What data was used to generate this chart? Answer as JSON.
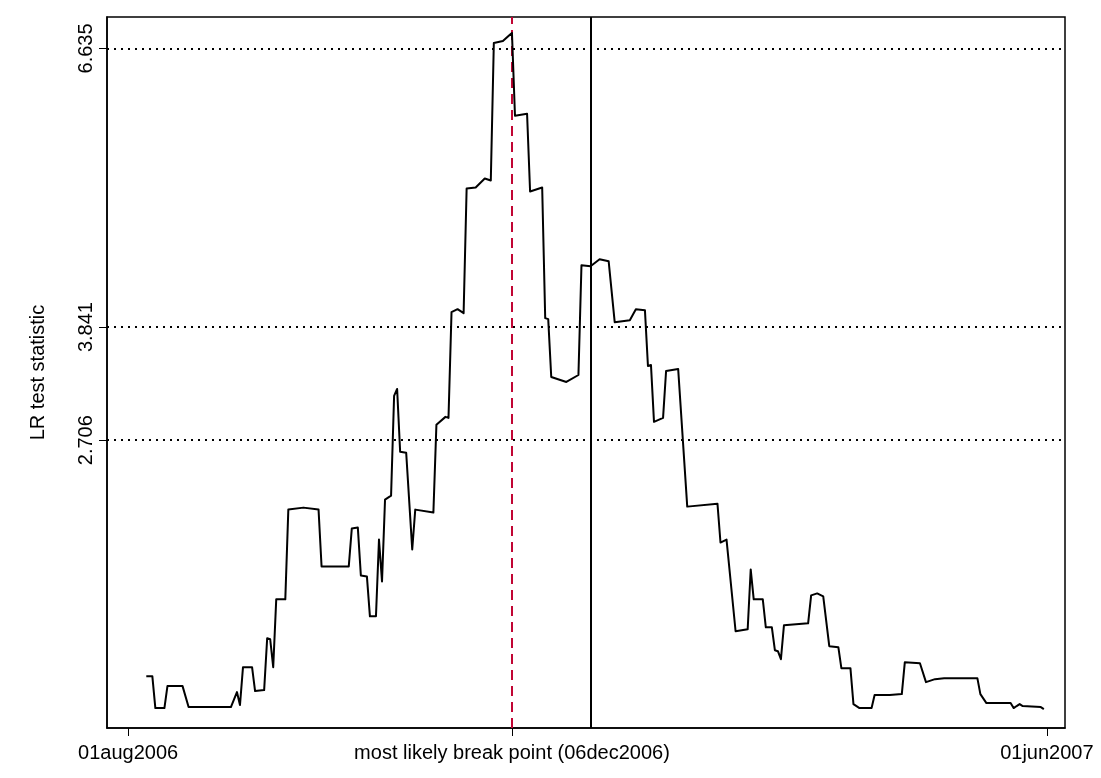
{
  "chart_data": {
    "type": "line",
    "ylabel": "LR test statistic",
    "xlim": [
      "2006-07-25",
      "2007-06-07"
    ],
    "ylim": [
      -0.18,
      6.95
    ],
    "xticks": [
      {
        "value": "2006-08-01",
        "label": "01aug2006"
      },
      {
        "value": "2006-12-06",
        "label": "most likely break point (06dec2006)"
      },
      {
        "value": "2007-06-01",
        "label": "01jun2007"
      }
    ],
    "yticks": [
      2.706,
      3.841,
      6.635
    ],
    "marker": "none",
    "ref_lines": [
      {
        "axis": "y",
        "value": 2.706,
        "color": "#000000",
        "line_style": "dotted"
      },
      {
        "axis": "y",
        "value": 3.841,
        "color": "#000000",
        "line_style": "dotted"
      },
      {
        "axis": "y",
        "value": 6.635,
        "color": "#000000",
        "line_style": "dotted"
      },
      {
        "axis": "x",
        "value": "2006-12-06",
        "color": "#c10534",
        "line_style": "dashed"
      },
      {
        "axis": "x",
        "value": "2007-01-01",
        "color": "#000000",
        "line_style": "solid"
      }
    ],
    "series": [
      {
        "color": "#000000",
        "x": [
          "2006-08-07",
          "2006-08-09",
          "2006-08-10",
          "2006-08-13",
          "2006-08-14",
          "2006-08-19",
          "2006-08-21",
          "2006-09-04",
          "2006-09-06",
          "2006-09-07",
          "2006-09-08",
          "2006-09-11",
          "2006-09-12",
          "2006-09-15",
          "2006-09-16",
          "2006-09-17",
          "2006-09-18",
          "2006-09-19",
          "2006-09-22",
          "2006-09-23",
          "2006-09-28",
          "2006-10-03",
          "2006-10-04",
          "2006-10-13",
          "2006-10-14",
          "2006-10-16",
          "2006-10-17",
          "2006-10-19",
          "2006-10-20",
          "2006-10-22",
          "2006-10-23",
          "2006-10-24",
          "2006-10-25",
          "2006-10-27",
          "2006-10-28",
          "2006-10-29",
          "2006-10-30",
          "2006-11-01",
          "2006-11-03",
          "2006-11-04",
          "2006-11-10",
          "2006-11-11",
          "2006-11-14",
          "2006-11-15",
          "2006-11-16",
          "2006-11-18",
          "2006-11-20",
          "2006-11-21",
          "2006-11-24",
          "2006-11-27",
          "2006-11-29",
          "2006-11-30",
          "2006-12-03",
          "2006-12-06",
          "2006-12-07",
          "2006-12-11",
          "2006-12-12",
          "2006-12-16",
          "2006-12-17",
          "2006-12-18",
          "2006-12-19",
          "2006-12-24",
          "2006-12-28",
          "2006-12-29",
          "2007-01-01",
          "2007-01-04",
          "2007-01-07",
          "2007-01-09",
          "2007-01-14",
          "2007-01-16",
          "2007-01-19",
          "2007-01-20",
          "2007-01-21",
          "2007-01-22",
          "2007-01-25",
          "2007-01-26",
          "2007-01-30",
          "2007-02-02",
          "2007-02-12",
          "2007-02-13",
          "2007-02-15",
          "2007-02-18",
          "2007-02-22",
          "2007-02-23",
          "2007-02-24",
          "2007-02-27",
          "2007-02-28",
          "2007-03-02",
          "2007-03-03",
          "2007-03-04",
          "2007-03-05",
          "2007-03-06",
          "2007-03-14",
          "2007-03-15",
          "2007-03-17",
          "2007-03-19",
          "2007-03-21",
          "2007-03-24",
          "2007-03-25",
          "2007-03-28",
          "2007-03-29",
          "2007-03-31",
          "2007-04-04",
          "2007-04-05",
          "2007-04-10",
          "2007-04-14",
          "2007-04-15",
          "2007-04-20",
          "2007-04-22",
          "2007-04-25",
          "2007-04-28",
          "2007-05-09",
          "2007-05-10",
          "2007-05-12",
          "2007-05-20",
          "2007-05-21",
          "2007-05-23",
          "2007-05-24",
          "2007-05-30",
          "2007-05-31"
        ],
        "values": [
          0.34,
          0.34,
          0.02,
          0.02,
          0.24,
          0.24,
          0.03,
          0.03,
          0.18,
          0.05,
          0.43,
          0.43,
          0.19,
          0.2,
          0.72,
          0.71,
          0.43,
          1.11,
          1.11,
          2.01,
          2.03,
          2.01,
          1.44,
          1.44,
          1.82,
          1.83,
          1.35,
          1.34,
          0.94,
          0.94,
          1.71,
          1.29,
          2.11,
          2.15,
          3.15,
          3.22,
          2.59,
          2.58,
          1.61,
          2.01,
          1.98,
          2.86,
          2.94,
          2.93,
          3.99,
          4.02,
          3.98,
          5.23,
          5.24,
          5.33,
          5.31,
          6.69,
          6.71,
          6.79,
          5.96,
          5.98,
          5.2,
          5.24,
          3.93,
          3.92,
          3.34,
          3.29,
          3.36,
          4.46,
          4.45,
          4.52,
          4.5,
          3.89,
          3.91,
          4.02,
          4.01,
          3.45,
          3.46,
          2.89,
          2.93,
          3.4,
          3.42,
          2.04,
          2.07,
          1.68,
          1.71,
          0.79,
          0.81,
          1.41,
          1.11,
          1.11,
          0.83,
          0.83,
          0.6,
          0.59,
          0.51,
          0.85,
          0.87,
          1.15,
          1.17,
          1.14,
          0.64,
          0.63,
          0.42,
          0.42,
          0.06,
          0.02,
          0.02,
          0.15,
          0.15,
          0.16,
          0.48,
          0.47,
          0.28,
          0.31,
          0.32,
          0.32,
          0.16,
          0.07,
          0.07,
          0.02,
          0.06,
          0.04,
          0.03,
          0.01
        ]
      }
    ]
  }
}
